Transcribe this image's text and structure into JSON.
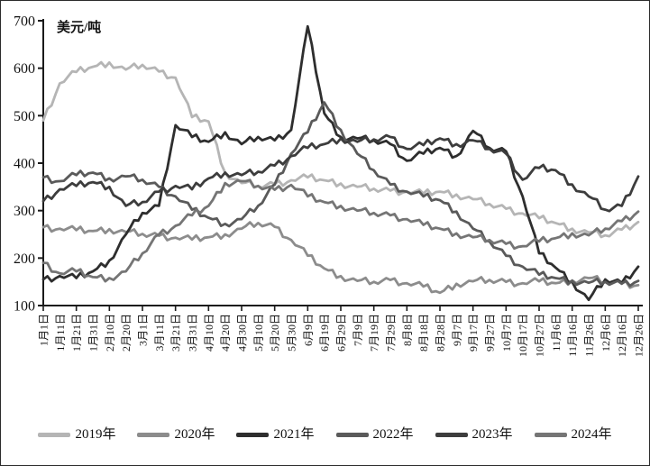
{
  "figure": {
    "background": "#ffffff",
    "border_color": "#2b2b2b",
    "axis_color": "#1a1a1a"
  },
  "chart_data": {
    "type": "line",
    "title": "",
    "xlabel": "",
    "ylabel": "美元/吨",
    "ylim": [
      100,
      700
    ],
    "yticks": [
      100,
      200,
      300,
      400,
      500,
      600,
      700
    ],
    "grid": false,
    "legend_position": "bottom",
    "x_tick_labels": [
      "1月1日",
      "1月11日",
      "1月21日",
      "1月31日",
      "2月10日",
      "2月20日",
      "3月1日",
      "3月11日",
      "3月21日",
      "3月31日",
      "4月10日",
      "4月20日",
      "4月30日",
      "5月10日",
      "5月20日",
      "5月30日",
      "6月9日",
      "6月19日",
      "6月29日",
      "7月9日",
      "7月19日",
      "7月29日",
      "8月8日",
      "8月18日",
      "8月28日",
      "9月7日",
      "9月17日",
      "9月27日",
      "10月7日",
      "10月17日",
      "10月27日",
      "11月6日",
      "11月16日",
      "11月26日",
      "12月6日",
      "12月16日",
      "12月26日"
    ],
    "series": [
      {
        "name": "2019年",
        "color": "#b5b5b5",
        "values": [
          490,
          568,
          592,
          603,
          612,
          597,
          607,
          593,
          580,
          497,
          488,
          380,
          358,
          352,
          356,
          364,
          370,
          364,
          357,
          350,
          346,
          342,
          340,
          336,
          340,
          334,
          324,
          314,
          304,
          294,
          284,
          274,
          262,
          254,
          248,
          260,
          276
        ]
      },
      {
        "name": "2020年",
        "color": "#8c8c8c",
        "values": [
          265,
          262,
          259,
          257,
          261,
          255,
          251,
          247,
          243,
          239,
          244,
          250,
          262,
          274,
          266,
          238,
          205,
          178,
          162,
          152,
          150,
          154,
          147,
          140,
          127,
          146,
          151,
          154,
          150,
          147,
          151,
          147,
          153,
          158,
          151,
          147,
          143
        ]
      },
      {
        "name": "2021年",
        "color": "#2e2e2e",
        "values": [
          155,
          162,
          158,
          172,
          195,
          250,
          295,
          310,
          480,
          455,
          445,
          465,
          440,
          455,
          448,
          470,
          688,
          505,
          455,
          452,
          448,
          440,
          405,
          420,
          432,
          415,
          468,
          432,
          425,
          330,
          210,
          180,
          150,
          112,
          155,
          148,
          182
        ]
      },
      {
        "name": "2022年",
        "color": "#5a5a5a",
        "values": [
          370,
          362,
          375,
          380,
          368,
          372,
          365,
          350,
          330,
          302,
          285,
          272,
          282,
          310,
          355,
          420,
          465,
          528,
          470,
          420,
          385,
          355,
          340,
          330,
          322,
          298,
          262,
          235,
          205,
          182,
          165,
          158,
          152,
          148,
          150,
          146,
          152
        ]
      },
      {
        "name": "2023年",
        "color": "#3d3d3d",
        "values": [
          320,
          345,
          352,
          360,
          350,
          310,
          318,
          340,
          352,
          345,
          368,
          380,
          375,
          382,
          395,
          415,
          432,
          440,
          452,
          445,
          450,
          455,
          430,
          438,
          452,
          440,
          448,
          430,
          420,
          365,
          390,
          385,
          355,
          330,
          302,
          310,
          372
        ]
      },
      {
        "name": "2024年",
        "color": "#757575",
        "values": [
          190,
          168,
          172,
          160,
          158,
          172,
          210,
          250,
          268,
          290,
          310,
          358,
          362,
          352,
          344,
          354,
          330,
          318,
          310,
          300,
          295,
          290,
          282,
          270,
          262,
          252,
          244,
          238,
          230,
          225,
          235,
          242,
          252,
          248,
          262,
          278,
          298
        ]
      }
    ]
  }
}
